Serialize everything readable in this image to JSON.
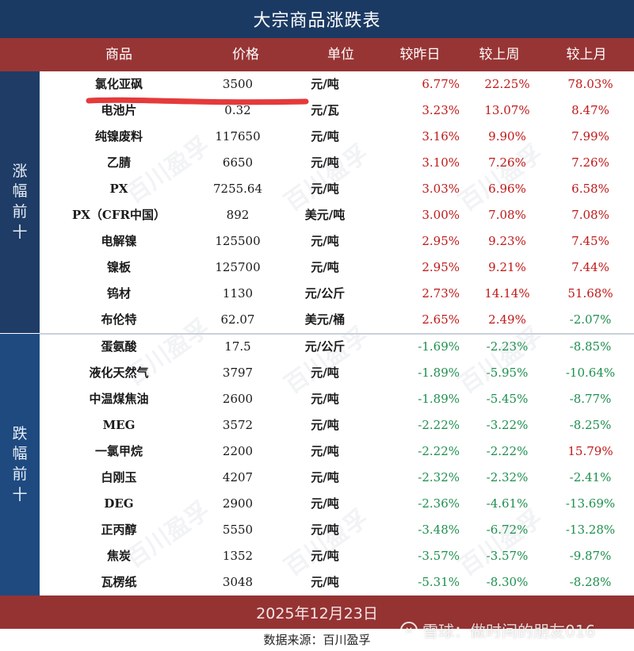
{
  "title": "大宗商品涨跌表",
  "columns": [
    "商品",
    "价格",
    "单位",
    "较昨日",
    "较上周",
    "较上月"
  ],
  "sections": {
    "up": {
      "label": [
        "涨",
        "幅",
        "前",
        "十"
      ]
    },
    "down": {
      "label": [
        "跌",
        "幅",
        "前",
        "十"
      ]
    }
  },
  "colors": {
    "title_bg": "#1b3a63",
    "header_bg": "#973535",
    "positive": "#c01818",
    "negative": "#1f8f4e",
    "side_bg": "#1e3c66"
  },
  "rows": [
    {
      "name": "氯化亚砜",
      "price": "3500",
      "unit": "元/吨",
      "day": "6.77%",
      "week": "22.25%",
      "month": "78.03%"
    },
    {
      "name": "电池片",
      "price": "0.32",
      "unit": "元/瓦",
      "day": "3.23%",
      "week": "13.07%",
      "month": "8.47%"
    },
    {
      "name": "纯镍废料",
      "price": "117650",
      "unit": "元/吨",
      "day": "3.16%",
      "week": "9.90%",
      "month": "7.99%"
    },
    {
      "name": "乙腈",
      "price": "6650",
      "unit": "元/吨",
      "day": "3.10%",
      "week": "7.26%",
      "month": "7.26%"
    },
    {
      "name": "PX",
      "price": "7255.64",
      "unit": "元/吨",
      "day": "3.03%",
      "week": "6.96%",
      "month": "6.58%"
    },
    {
      "name": "PX（CFR中国）",
      "price": "892",
      "unit": "美元/吨",
      "day": "3.00%",
      "week": "7.08%",
      "month": "7.08%"
    },
    {
      "name": "电解镍",
      "price": "125500",
      "unit": "元/吨",
      "day": "2.95%",
      "week": "9.23%",
      "month": "7.45%"
    },
    {
      "name": "镍板",
      "price": "125700",
      "unit": "元/吨",
      "day": "2.95%",
      "week": "9.21%",
      "month": "7.44%"
    },
    {
      "name": "钨材",
      "price": "1130",
      "unit": "元/公斤",
      "day": "2.73%",
      "week": "14.14%",
      "month": "51.68%"
    },
    {
      "name": "布伦特",
      "price": "62.07",
      "unit": "美元/桶",
      "day": "2.65%",
      "week": "2.49%",
      "month": "-2.07%"
    },
    {
      "name": "蛋氨酸",
      "price": "17.5",
      "unit": "元/公斤",
      "day": "-1.69%",
      "week": "-2.23%",
      "month": "-8.85%"
    },
    {
      "name": "液化天然气",
      "price": "3797",
      "unit": "元/吨",
      "day": "-1.89%",
      "week": "-5.95%",
      "month": "-10.64%"
    },
    {
      "name": "中温煤焦油",
      "price": "2600",
      "unit": "元/吨",
      "day": "-1.89%",
      "week": "-5.45%",
      "month": "-8.77%"
    },
    {
      "name": "MEG",
      "price": "3572",
      "unit": "元/吨",
      "day": "-2.22%",
      "week": "-3.22%",
      "month": "-8.25%"
    },
    {
      "name": "一氯甲烷",
      "price": "2200",
      "unit": "元/吨",
      "day": "-2.22%",
      "week": "-2.22%",
      "month": "15.79%"
    },
    {
      "name": "白刚玉",
      "price": "4207",
      "unit": "元/吨",
      "day": "-2.32%",
      "week": "-2.32%",
      "month": "-2.41%"
    },
    {
      "name": "DEG",
      "price": "2900",
      "unit": "元/吨",
      "day": "-2.36%",
      "week": "-4.61%",
      "month": "-13.69%"
    },
    {
      "name": "正丙醇",
      "price": "5550",
      "unit": "元/吨",
      "day": "-3.48%",
      "week": "-6.72%",
      "month": "-13.28%"
    },
    {
      "name": "焦炭",
      "price": "1352",
      "unit": "元/吨",
      "day": "-3.57%",
      "week": "-3.57%",
      "month": "-9.87%"
    },
    {
      "name": "瓦楞纸",
      "price": "3048",
      "unit": "元/吨",
      "day": "-5.31%",
      "week": "-8.30%",
      "month": "-8.28%"
    }
  ],
  "date": "2025年12月23日",
  "source": "数据来源：百川盈孚",
  "overlay_watermark": {
    "icon": "snowball-logo-icon",
    "text": "雪球：做时间的朋友016"
  },
  "background_watermark": {
    "cn": "百川盈孚",
    "en": "BAIINFO"
  }
}
